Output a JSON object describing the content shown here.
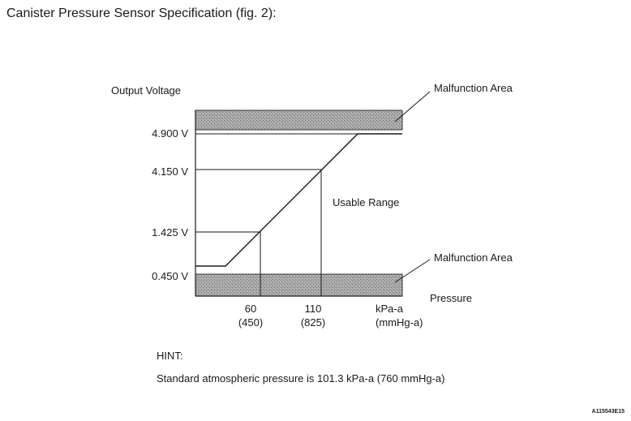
{
  "heading": "Canister Pressure Sensor Specification (fig. 2):",
  "diagram": {
    "y_axis_title": "Output Voltage",
    "x_axis_title": "Pressure",
    "region_labels": {
      "upper_malfunction": "Malfunction Area",
      "lower_malfunction": "Malfunction Area",
      "usable": "Usable Range"
    },
    "y_ticks": [
      "4.900 V",
      "4.150 V",
      "1.425 V",
      "0.450 V"
    ],
    "x_ticks": [
      {
        "value": "60",
        "sub": "(450)"
      },
      {
        "value": "110",
        "sub": "(825)"
      },
      {
        "value": "kPa-a",
        "sub": "(mmHg-a)"
      }
    ],
    "colors": {
      "malfunction_band": "#9c9c9c",
      "line": "#1a1a1a"
    }
  },
  "hint": {
    "title": "HINT:",
    "text": "Standard atmospheric pressure is 101.3 kPa-a (760 mmHg-a)"
  },
  "figure_code": "A115543E15"
}
